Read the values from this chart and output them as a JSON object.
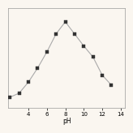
{
  "x": [
    2,
    3,
    4,
    5,
    6,
    7,
    8,
    9,
    10,
    11,
    12,
    13
  ],
  "y": [
    55,
    75,
    130,
    200,
    280,
    370,
    430,
    370,
    310,
    255,
    165,
    115
  ],
  "xlabel": "pH",
  "xticks": [
    4,
    6,
    8,
    10,
    12,
    14
  ],
  "xlim": [
    1.8,
    14.5
  ],
  "ylim": [
    0,
    500
  ],
  "yticks": [],
  "line_color": "#aaaaaa",
  "marker_color": "#333333",
  "marker_size": 3.0,
  "line_width": 0.8,
  "bg_color": "#faf6f0",
  "xlabel_fontsize": 5.5,
  "tick_fontsize": 5
}
